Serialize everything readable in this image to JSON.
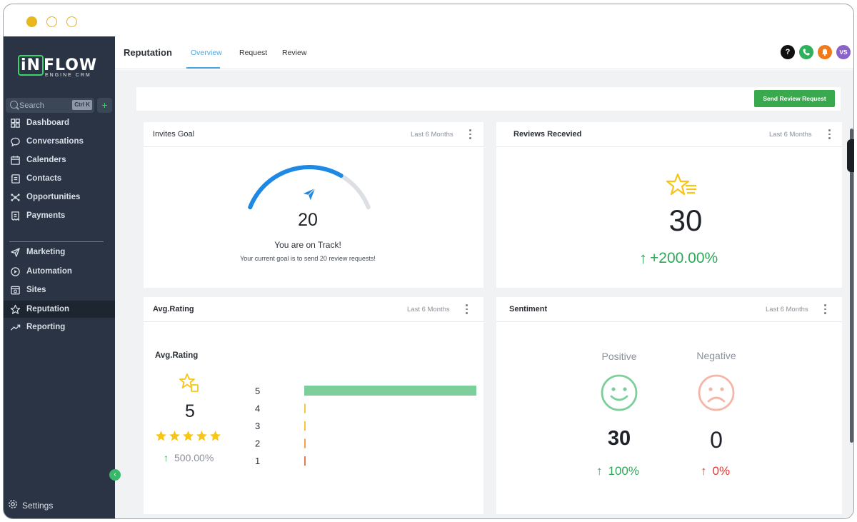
{
  "sidebar": {
    "logo_main": "iNFLOW",
    "logo_sub": "ENGINE CRM",
    "search_placeholder": "Search",
    "search_shortcut": "Ctrl K",
    "quick_add": "+",
    "items": [
      {
        "label": "Dashboard",
        "icon": "grid-icon"
      },
      {
        "label": "Conversations",
        "icon": "chat-bubble-icon"
      },
      {
        "label": "Calenders",
        "icon": "calendar-icon"
      },
      {
        "label": "Contacts",
        "icon": "contact-card-icon"
      },
      {
        "label": "Opportunities",
        "icon": "network-icon"
      },
      {
        "label": "Payments",
        "icon": "receipt-icon"
      },
      {
        "label": "Marketing",
        "icon": "send-icon"
      },
      {
        "label": "Automation",
        "icon": "play-circle-icon"
      },
      {
        "label": "Sites",
        "icon": "browser-icon"
      },
      {
        "label": "Reputation",
        "icon": "star-outline-icon"
      },
      {
        "label": "Reporting",
        "icon": "trend-line-icon"
      }
    ],
    "active_item": "Reputation",
    "settings_label": "Settings",
    "collapse_symbol": "‹"
  },
  "header": {
    "title": "Reputation",
    "tabs": [
      {
        "label": "Overview",
        "active": true
      },
      {
        "label": "Request",
        "active": false
      },
      {
        "label": "Review",
        "active": false
      }
    ],
    "icons": [
      {
        "name": "help-icon",
        "glyph": "?",
        "color": "#111111"
      },
      {
        "name": "phone-icon",
        "glyph": "✆",
        "color": "#2fb05a"
      },
      {
        "name": "notification-bell-icon",
        "glyph": "🔔",
        "color": "#f07a1a"
      },
      {
        "name": "user-avatar",
        "glyph": "VS",
        "color": "#8a63c9"
      }
    ]
  },
  "actions": {
    "send_review_request": "Send Review Request"
  },
  "cards": {
    "invites_goal": {
      "title": "Invites Goal",
      "range": "Last 6 Months",
      "value": "20",
      "goal_progress": 0.72,
      "status": "You are on Track!",
      "description": "Your current goal is to send 20 review requests!"
    },
    "reviews_received": {
      "title": "Reviews Recevied",
      "range": "Last 6 Months",
      "value": "30",
      "change": "+200.00%"
    },
    "avg_rating": {
      "title": "Avg.Rating",
      "range": "Last 6 Months",
      "subtitle": "Avg.Rating",
      "value": "5",
      "stars": 5,
      "change": "500.00%"
    },
    "sentiment": {
      "title": "Sentiment",
      "range": "Last 6 Months",
      "positive_label": "Positive",
      "positive_value": "30",
      "positive_change": "100%",
      "negative_label": "Negative",
      "negative_value": "0",
      "negative_change": "0%"
    }
  },
  "chart_data": {
    "type": "bar",
    "orientation": "horizontal",
    "categories": [
      "5",
      "4",
      "3",
      "2",
      "1"
    ],
    "values": [
      30,
      0,
      0,
      0,
      0
    ],
    "colors": [
      "#7ccf9a",
      "#f3c744",
      "#f3c744",
      "#f0a34a",
      "#e57a5a"
    ],
    "xlim": [
      0,
      30
    ]
  },
  "colors": {
    "accent_blue": "#1e88e5",
    "success_green": "#2fa85a",
    "danger_red": "#e53935",
    "star_yellow": "#f5c518",
    "sidebar_bg": "#2a3444"
  }
}
